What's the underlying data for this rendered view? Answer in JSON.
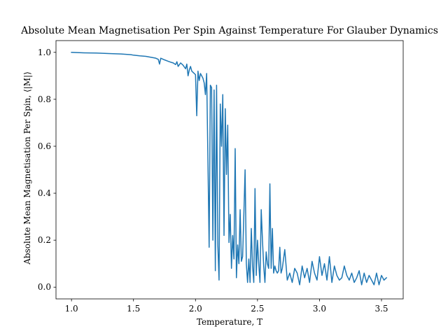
{
  "chart_data": {
    "type": "line",
    "title": "Absolute Mean Magnetisation Per Spin Against Temperature For Glauber Dynamics",
    "xlabel": "Temperature, T",
    "ylabel": "Absolute Mean Magnetisation Per Spin, ⟨|M|⟩",
    "xlim": [
      0.875,
      3.675
    ],
    "ylim": [
      -0.05,
      1.05
    ],
    "xticks": [
      {
        "value": 1.0,
        "label": "1.0"
      },
      {
        "value": 1.5,
        "label": "1.5"
      },
      {
        "value": 2.0,
        "label": "2.0"
      },
      {
        "value": 2.5,
        "label": "2.5"
      },
      {
        "value": 3.0,
        "label": "3.0"
      },
      {
        "value": 3.5,
        "label": "3.5"
      }
    ],
    "yticks": [
      {
        "value": 0.0,
        "label": "0.0"
      },
      {
        "value": 0.2,
        "label": "0.2"
      },
      {
        "value": 0.4,
        "label": "0.4"
      },
      {
        "value": 0.6,
        "label": "0.6"
      },
      {
        "value": 0.8,
        "label": "0.8"
      },
      {
        "value": 1.0,
        "label": "1.0"
      }
    ],
    "grid": false,
    "legend": "none",
    "series": [
      {
        "color": "#1f77b4",
        "x": [
          1.0,
          1.1,
          1.2,
          1.3,
          1.4,
          1.48,
          1.5,
          1.55,
          1.6,
          1.65,
          1.68,
          1.7,
          1.71,
          1.72,
          1.75,
          1.78,
          1.8,
          1.82,
          1.84,
          1.85,
          1.86,
          1.88,
          1.9,
          1.92,
          1.93,
          1.94,
          1.95,
          1.96,
          1.97,
          1.98,
          2.0,
          2.01,
          2.02,
          2.03,
          2.04,
          2.05,
          2.06,
          2.07,
          2.08,
          2.09,
          2.1,
          2.11,
          2.12,
          2.13,
          2.14,
          2.15,
          2.16,
          2.17,
          2.18,
          2.19,
          2.2,
          2.21,
          2.22,
          2.23,
          2.24,
          2.25,
          2.26,
          2.27,
          2.28,
          2.29,
          2.3,
          2.31,
          2.32,
          2.33,
          2.34,
          2.35,
          2.36,
          2.37,
          2.38,
          2.39,
          2.4,
          2.41,
          2.42,
          2.43,
          2.44,
          2.45,
          2.46,
          2.47,
          2.48,
          2.49,
          2.5,
          2.51,
          2.52,
          2.53,
          2.54,
          2.55,
          2.56,
          2.57,
          2.58,
          2.59,
          2.6,
          2.61,
          2.62,
          2.63,
          2.64,
          2.65,
          2.66,
          2.67,
          2.68,
          2.69,
          2.7,
          2.72,
          2.74,
          2.76,
          2.78,
          2.8,
          2.82,
          2.84,
          2.86,
          2.88,
          2.9,
          2.92,
          2.94,
          2.96,
          2.98,
          3.0,
          3.02,
          3.04,
          3.06,
          3.08,
          3.1,
          3.12,
          3.14,
          3.16,
          3.18,
          3.2,
          3.22,
          3.24,
          3.26,
          3.28,
          3.3,
          3.32,
          3.34,
          3.36,
          3.38,
          3.4,
          3.42,
          3.44,
          3.46,
          3.48,
          3.5,
          3.52,
          3.54
        ],
        "y": [
          1.0,
          0.998,
          0.997,
          0.995,
          0.993,
          0.99,
          0.988,
          0.985,
          0.983,
          0.978,
          0.975,
          0.97,
          0.95,
          0.975,
          0.968,
          0.962,
          0.958,
          0.955,
          0.948,
          0.96,
          0.94,
          0.955,
          0.945,
          0.93,
          0.95,
          0.9,
          0.925,
          0.94,
          0.92,
          0.915,
          0.905,
          0.73,
          0.92,
          0.88,
          0.91,
          0.9,
          0.89,
          0.87,
          0.82,
          0.91,
          0.55,
          0.17,
          0.86,
          0.85,
          0.2,
          0.84,
          0.07,
          0.86,
          0.18,
          0.03,
          0.78,
          0.6,
          0.82,
          0.22,
          0.76,
          0.48,
          0.69,
          0.19,
          0.31,
          0.08,
          0.22,
          0.12,
          0.59,
          0.04,
          0.18,
          0.1,
          0.33,
          0.11,
          0.13,
          0.31,
          0.5,
          0.1,
          0.02,
          0.12,
          0.02,
          0.25,
          0.09,
          0.02,
          0.42,
          0.05,
          0.2,
          0.1,
          0.02,
          0.33,
          0.2,
          0.09,
          0.02,
          0.15,
          0.1,
          0.08,
          0.44,
          0.08,
          0.25,
          0.06,
          0.09,
          0.07,
          0.06,
          0.07,
          0.17,
          0.06,
          0.08,
          0.16,
          0.03,
          0.06,
          0.02,
          0.08,
          0.06,
          0.01,
          0.09,
          0.04,
          0.08,
          0.02,
          0.11,
          0.06,
          0.03,
          0.13,
          0.05,
          0.1,
          0.03,
          0.13,
          0.02,
          0.09,
          0.05,
          0.03,
          0.04,
          0.09,
          0.05,
          0.03,
          0.06,
          0.02,
          0.04,
          0.07,
          0.01,
          0.06,
          0.02,
          0.05,
          0.03,
          0.01,
          0.06,
          0.01,
          0.05,
          0.03,
          0.04
        ]
      }
    ]
  }
}
